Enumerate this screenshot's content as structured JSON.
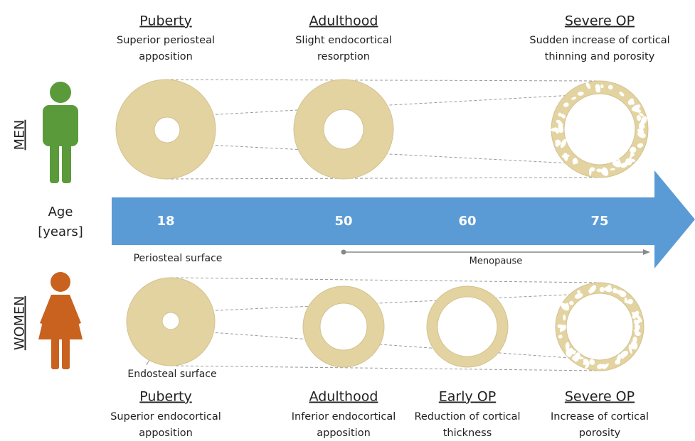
{
  "men": {
    "label": "MEN",
    "stages": [
      {
        "title": "Puberty",
        "description": [
          "Superior periosteal",
          "apposition"
        ]
      },
      {
        "title": "Adulthood",
        "description": [
          "Slight endocortical",
          "resorption"
        ]
      },
      {
        "title": "Severe OP",
        "description": [
          "Sudden increase of cortical",
          "thinning and porosity"
        ]
      }
    ]
  },
  "women": {
    "label": "WOMEN",
    "stages": [
      {
        "title": "Puberty",
        "description": [
          "Superior endocortical",
          "apposition"
        ]
      },
      {
        "title": "Adulthood",
        "description": [
          "Inferior endocortical",
          "apposition"
        ]
      },
      {
        "title": "Early OP",
        "description": [
          "Reduction of cortical",
          "thickness"
        ]
      },
      {
        "title": "Severe OP",
        "description": [
          "Increase of cortical",
          "porosity"
        ]
      }
    ]
  },
  "axis": {
    "label": [
      "Age",
      "[years]"
    ],
    "ages": [
      "18",
      "50",
      "60",
      "75"
    ]
  },
  "menopause": "Menopause",
  "annotations": {
    "periosteal": "Periosteal surface",
    "endosteal": "Endosteal surface"
  }
}
